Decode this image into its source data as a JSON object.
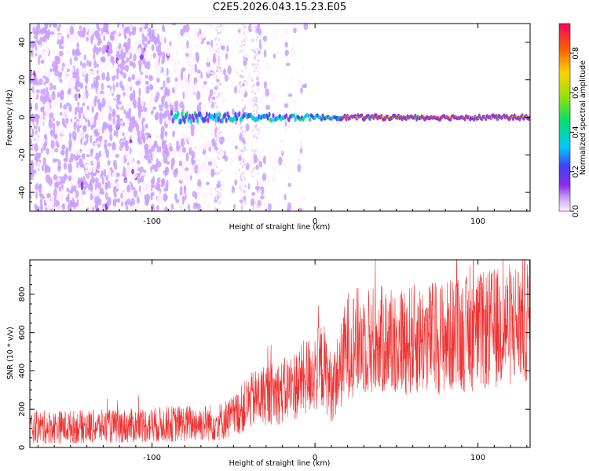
{
  "title": "C2E5.2026.043.15.23.E05",
  "colors": {
    "snr_line": "#f03030",
    "axis": "#000000",
    "colorbar_stops": [
      "#fff0ff",
      "#c8a0ff",
      "#8a2be2",
      "#4040ff",
      "#00c8ff",
      "#00e070",
      "#a0e000",
      "#ffd000",
      "#ff6000",
      "#ff0060"
    ]
  },
  "chart_data": [
    {
      "type": "heatmap",
      "xlabel": "Height of straight line (km)",
      "ylabel": "Frequency (Hz)",
      "xlim": [
        -175,
        132
      ],
      "ylim": [
        -50,
        50
      ],
      "xticks": [
        -100,
        0,
        100
      ],
      "yticks": [
        -40,
        -20,
        0,
        20,
        40
      ],
      "description_values": {
        "noise_region_x": [
          -175,
          -30
        ],
        "signal_line_frequency_hz": 0,
        "signal_onset_x": -88,
        "signal_peak_amplitude_after_x": 15
      },
      "colorbar": {
        "label": "Normalized spectral amplitude",
        "range": [
          0.0,
          0.95
        ],
        "ticks": [
          0.0,
          0.2,
          0.4,
          0.6,
          0.8
        ]
      }
    },
    {
      "type": "line",
      "xlabel": "Height of straight line (km)",
      "ylabel": "SNR (10 * v/v)",
      "xlim": [
        -175,
        132
      ],
      "ylim": [
        0,
        980
      ],
      "xticks": [
        -100,
        0,
        100
      ],
      "yticks": [
        0,
        200,
        400,
        600,
        800
      ],
      "trend_x": [
        -175,
        -120,
        -80,
        -60,
        -50,
        -40,
        -30,
        -20,
        -10,
        0,
        5,
        10,
        15,
        20,
        30,
        50,
        80,
        100,
        120,
        132
      ],
      "trend_y": [
        105,
        110,
        125,
        130,
        160,
        240,
        280,
        290,
        340,
        400,
        430,
        310,
        400,
        540,
        560,
        555,
        580,
        600,
        640,
        680
      ]
    }
  ]
}
